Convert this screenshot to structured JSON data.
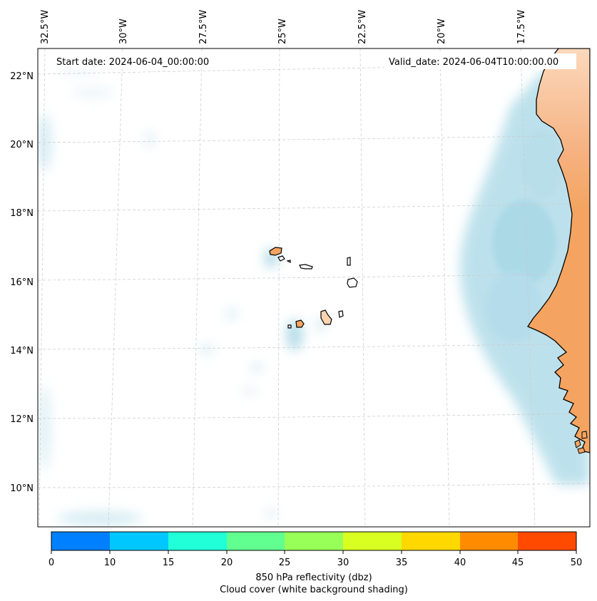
{
  "map": {
    "start_date": "Start date: 2024-06-04_00:00:00",
    "valid_date": "Valid_date: 2024-06-04T10:00:00.00",
    "lon_labels": [
      "32.5°W",
      "30°W",
      "27.5°W",
      "25°W",
      "22.5°W",
      "20°W",
      "17.5°W"
    ],
    "lat_labels": [
      "22°N",
      "20°N",
      "18°N",
      "16°N",
      "14°N",
      "12°N",
      "10°N"
    ],
    "land_color": "#f4a460",
    "cloud_color": "#a8d8e6",
    "coast_color": "#000000"
  },
  "colorbar": {
    "ticks": [
      "0",
      "10",
      "15",
      "20",
      "25",
      "30",
      "35",
      "40",
      "45",
      "50"
    ],
    "colors": [
      "#0080ff",
      "#00c8ff",
      "#20ffd8",
      "#60ff90",
      "#98ff58",
      "#d8ff20",
      "#ffd800",
      "#ff8c00",
      "#ff4a00"
    ],
    "label_line1": "850 hPa reflectivity (dbz)",
    "label_line2": "Cloud cover (white background shading)"
  }
}
